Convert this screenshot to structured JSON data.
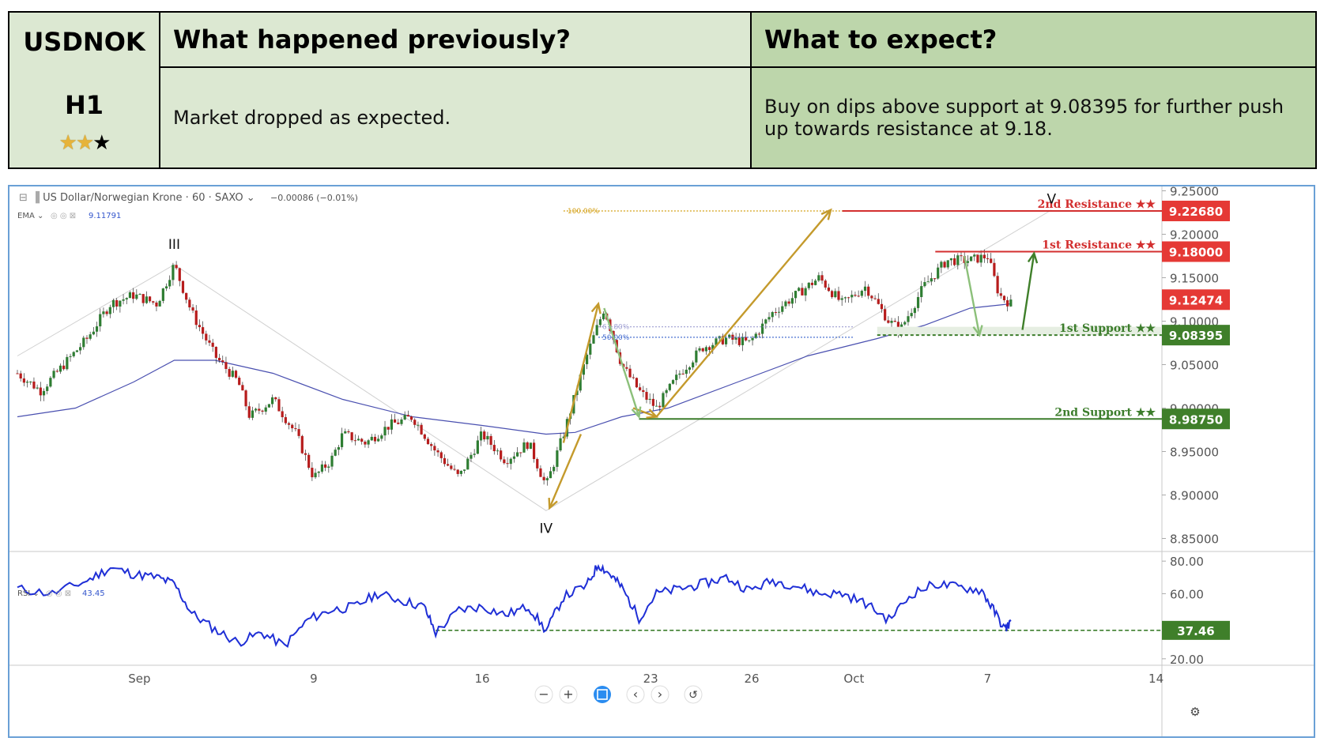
{
  "header": {
    "symbol": "USDNOK",
    "timeframe": "H1",
    "stars_filled": 2,
    "stars_total": 3,
    "col_prev_title": "What happened previously?",
    "col_next_title": "What to expect?",
    "prev_text": "Market dropped as expected.",
    "next_text": "Buy on dips above support at 9.08395 for further push up towards resistance at 9.18."
  },
  "chart_data": {
    "type": "candlestick",
    "instrument_label": "US Dollar/Norwegian Krone · 60 · SAXO",
    "change_label": "−0.00086 (−0.01%)",
    "ema_label": "EMA",
    "ema_value_label": "9.11791",
    "rsi_label": "RSI",
    "rsi_value_label": "43.45",
    "x_tick_labels": [
      "Sep",
      "9",
      "16",
      "23",
      "26",
      "Oct",
      "7",
      "14"
    ],
    "y_tick_labels": [
      "9.25000",
      "9.20000",
      "9.15000",
      "9.10000",
      "9.05000",
      "9.00000",
      "8.95000",
      "8.90000",
      "8.85000"
    ],
    "ylim": [
      8.835,
      9.255
    ],
    "rsi_tick_labels": [
      "80.00",
      "60.00",
      "20.00"
    ],
    "rsi_ylim": [
      17,
      83
    ],
    "current_price": 9.12474,
    "current_price_label": "9.12474",
    "levels": [
      {
        "name": "2nd Resistance ★★",
        "value": 9.2268,
        "value_label": "9.22680",
        "kind": "resistance"
      },
      {
        "name": "1st Resistance ★★",
        "value": 9.18,
        "value_label": "9.18000",
        "kind": "resistance"
      },
      {
        "name": "1st Support ★★",
        "value": 9.08395,
        "value_label": "9.08395",
        "kind": "support"
      },
      {
        "name": "2nd Support ★★",
        "value": 8.9875,
        "value_label": "8.98750",
        "kind": "support"
      }
    ],
    "rsi_level": {
      "value": 37.46,
      "value_label": "37.46"
    },
    "fib_labels": [
      {
        "label": "100.00%",
        "value": 9.2268
      },
      {
        "label": "61.80%",
        "value": 9.0935
      },
      {
        "label": "50.00%",
        "value": 9.0815
      }
    ],
    "wave_labels": [
      "III",
      "IV",
      "V"
    ],
    "wave_points": [
      {
        "label": "III",
        "time_index": 0.135,
        "value": 9.165
      },
      {
        "label": "IV",
        "time_index": 0.455,
        "value": 8.882
      },
      {
        "label": "V",
        "time_index": 0.89,
        "value": 9.228
      }
    ],
    "price_path": [
      [
        0.0,
        9.04
      ],
      [
        0.02,
        9.02
      ],
      [
        0.04,
        9.05
      ],
      [
        0.06,
        9.08
      ],
      [
        0.08,
        9.12
      ],
      [
        0.1,
        9.13
      ],
      [
        0.12,
        9.12
      ],
      [
        0.135,
        9.165
      ],
      [
        0.15,
        9.11
      ],
      [
        0.17,
        9.06
      ],
      [
        0.19,
        9.03
      ],
      [
        0.2,
        8.99
      ],
      [
        0.22,
        9.01
      ],
      [
        0.24,
        8.97
      ],
      [
        0.255,
        8.92
      ],
      [
        0.27,
        8.94
      ],
      [
        0.28,
        8.97
      ],
      [
        0.3,
        8.96
      ],
      [
        0.32,
        8.98
      ],
      [
        0.34,
        8.99
      ],
      [
        0.36,
        8.95
      ],
      [
        0.38,
        8.92
      ],
      [
        0.4,
        8.97
      ],
      [
        0.42,
        8.94
      ],
      [
        0.44,
        8.96
      ],
      [
        0.455,
        8.91
      ],
      [
        0.47,
        8.97
      ],
      [
        0.49,
        9.06
      ],
      [
        0.505,
        9.115
      ],
      [
        0.52,
        9.05
      ],
      [
        0.535,
        9.02
      ],
      [
        0.55,
        9.0
      ],
      [
        0.57,
        9.04
      ],
      [
        0.59,
        9.07
      ],
      [
        0.61,
        9.08
      ],
      [
        0.63,
        9.075
      ],
      [
        0.65,
        9.11
      ],
      [
        0.67,
        9.13
      ],
      [
        0.69,
        9.15
      ],
      [
        0.71,
        9.12
      ],
      [
        0.73,
        9.14
      ],
      [
        0.75,
        9.1
      ],
      [
        0.76,
        9.09
      ],
      [
        0.78,
        9.14
      ],
      [
        0.8,
        9.17
      ],
      [
        0.82,
        9.17
      ],
      [
        0.835,
        9.175
      ],
      [
        0.845,
        9.13
      ],
      [
        0.855,
        9.12
      ]
    ],
    "ema_path": [
      [
        0.0,
        8.99
      ],
      [
        0.05,
        9.0
      ],
      [
        0.1,
        9.03
      ],
      [
        0.135,
        9.055
      ],
      [
        0.17,
        9.055
      ],
      [
        0.22,
        9.04
      ],
      [
        0.28,
        9.01
      ],
      [
        0.34,
        8.99
      ],
      [
        0.4,
        8.98
      ],
      [
        0.455,
        8.97
      ],
      [
        0.48,
        8.972
      ],
      [
        0.52,
        8.99
      ],
      [
        0.56,
        9.0
      ],
      [
        0.62,
        9.03
      ],
      [
        0.68,
        9.06
      ],
      [
        0.74,
        9.08
      ],
      [
        0.78,
        9.095
      ],
      [
        0.82,
        9.115
      ],
      [
        0.855,
        9.12
      ]
    ],
    "rsi_path": [
      [
        0.0,
        63
      ],
      [
        0.03,
        60
      ],
      [
        0.06,
        68
      ],
      [
        0.08,
        76
      ],
      [
        0.1,
        72
      ],
      [
        0.12,
        70
      ],
      [
        0.135,
        66
      ],
      [
        0.15,
        48
      ],
      [
        0.17,
        38
      ],
      [
        0.19,
        30
      ],
      [
        0.21,
        36
      ],
      [
        0.23,
        28
      ],
      [
        0.25,
        44
      ],
      [
        0.27,
        50
      ],
      [
        0.29,
        52
      ],
      [
        0.31,
        60
      ],
      [
        0.33,
        56
      ],
      [
        0.35,
        52
      ],
      [
        0.36,
        36
      ],
      [
        0.38,
        50
      ],
      [
        0.4,
        52
      ],
      [
        0.42,
        47
      ],
      [
        0.44,
        52
      ],
      [
        0.455,
        37
      ],
      [
        0.47,
        58
      ],
      [
        0.49,
        65
      ],
      [
        0.5,
        78
      ],
      [
        0.51,
        72
      ],
      [
        0.52,
        64
      ],
      [
        0.535,
        45
      ],
      [
        0.55,
        60
      ],
      [
        0.57,
        63
      ],
      [
        0.59,
        66
      ],
      [
        0.61,
        70
      ],
      [
        0.63,
        62
      ],
      [
        0.65,
        68
      ],
      [
        0.67,
        65
      ],
      [
        0.69,
        60
      ],
      [
        0.71,
        60
      ],
      [
        0.73,
        54
      ],
      [
        0.75,
        44
      ],
      [
        0.77,
        60
      ],
      [
        0.79,
        66
      ],
      [
        0.81,
        64
      ],
      [
        0.83,
        62
      ],
      [
        0.84,
        50
      ],
      [
        0.85,
        38
      ],
      [
        0.855,
        43
      ]
    ]
  },
  "toolbar": {
    "zoom_out": "−",
    "zoom_in": "+",
    "prev": "‹",
    "next": "›"
  }
}
